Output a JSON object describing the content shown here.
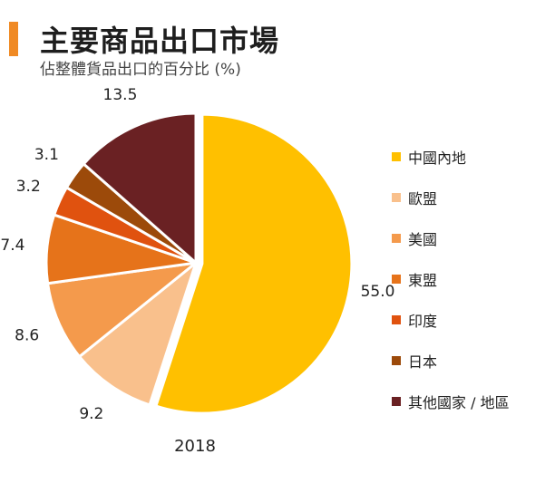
{
  "header": {
    "title": "主要商品出口市場",
    "subtitle": "佔整體貨品出口的百分比 (%)",
    "accent_color": "#f08a24"
  },
  "chart_data": {
    "type": "pie",
    "title": "主要商品出口市場",
    "subtitle": "佔整體貨品出口的百分比 (%)",
    "year_label": "2018",
    "slices": [
      {
        "label": "中國內地",
        "value": 55.0,
        "value_label": "55.0",
        "color": "#ffc000"
      },
      {
        "label": "歐盟",
        "value": 9.2,
        "value_label": "9.2",
        "color": "#f9c08c"
      },
      {
        "label": "美國",
        "value": 8.6,
        "value_label": "8.6",
        "color": "#f49a4c"
      },
      {
        "label": "東盟",
        "value": 7.4,
        "value_label": "7.4",
        "color": "#e6731a"
      },
      {
        "label": "印度",
        "value": 3.2,
        "value_label": "3.2",
        "color": "#e0520f"
      },
      {
        "label": "日本",
        "value": 3.1,
        "value_label": "3.1",
        "color": "#9c4a0a"
      },
      {
        "label": "其他國家 / 地區",
        "value": 13.5,
        "value_label": "13.5",
        "color": "#6a2123"
      }
    ],
    "legend_position": "right"
  }
}
